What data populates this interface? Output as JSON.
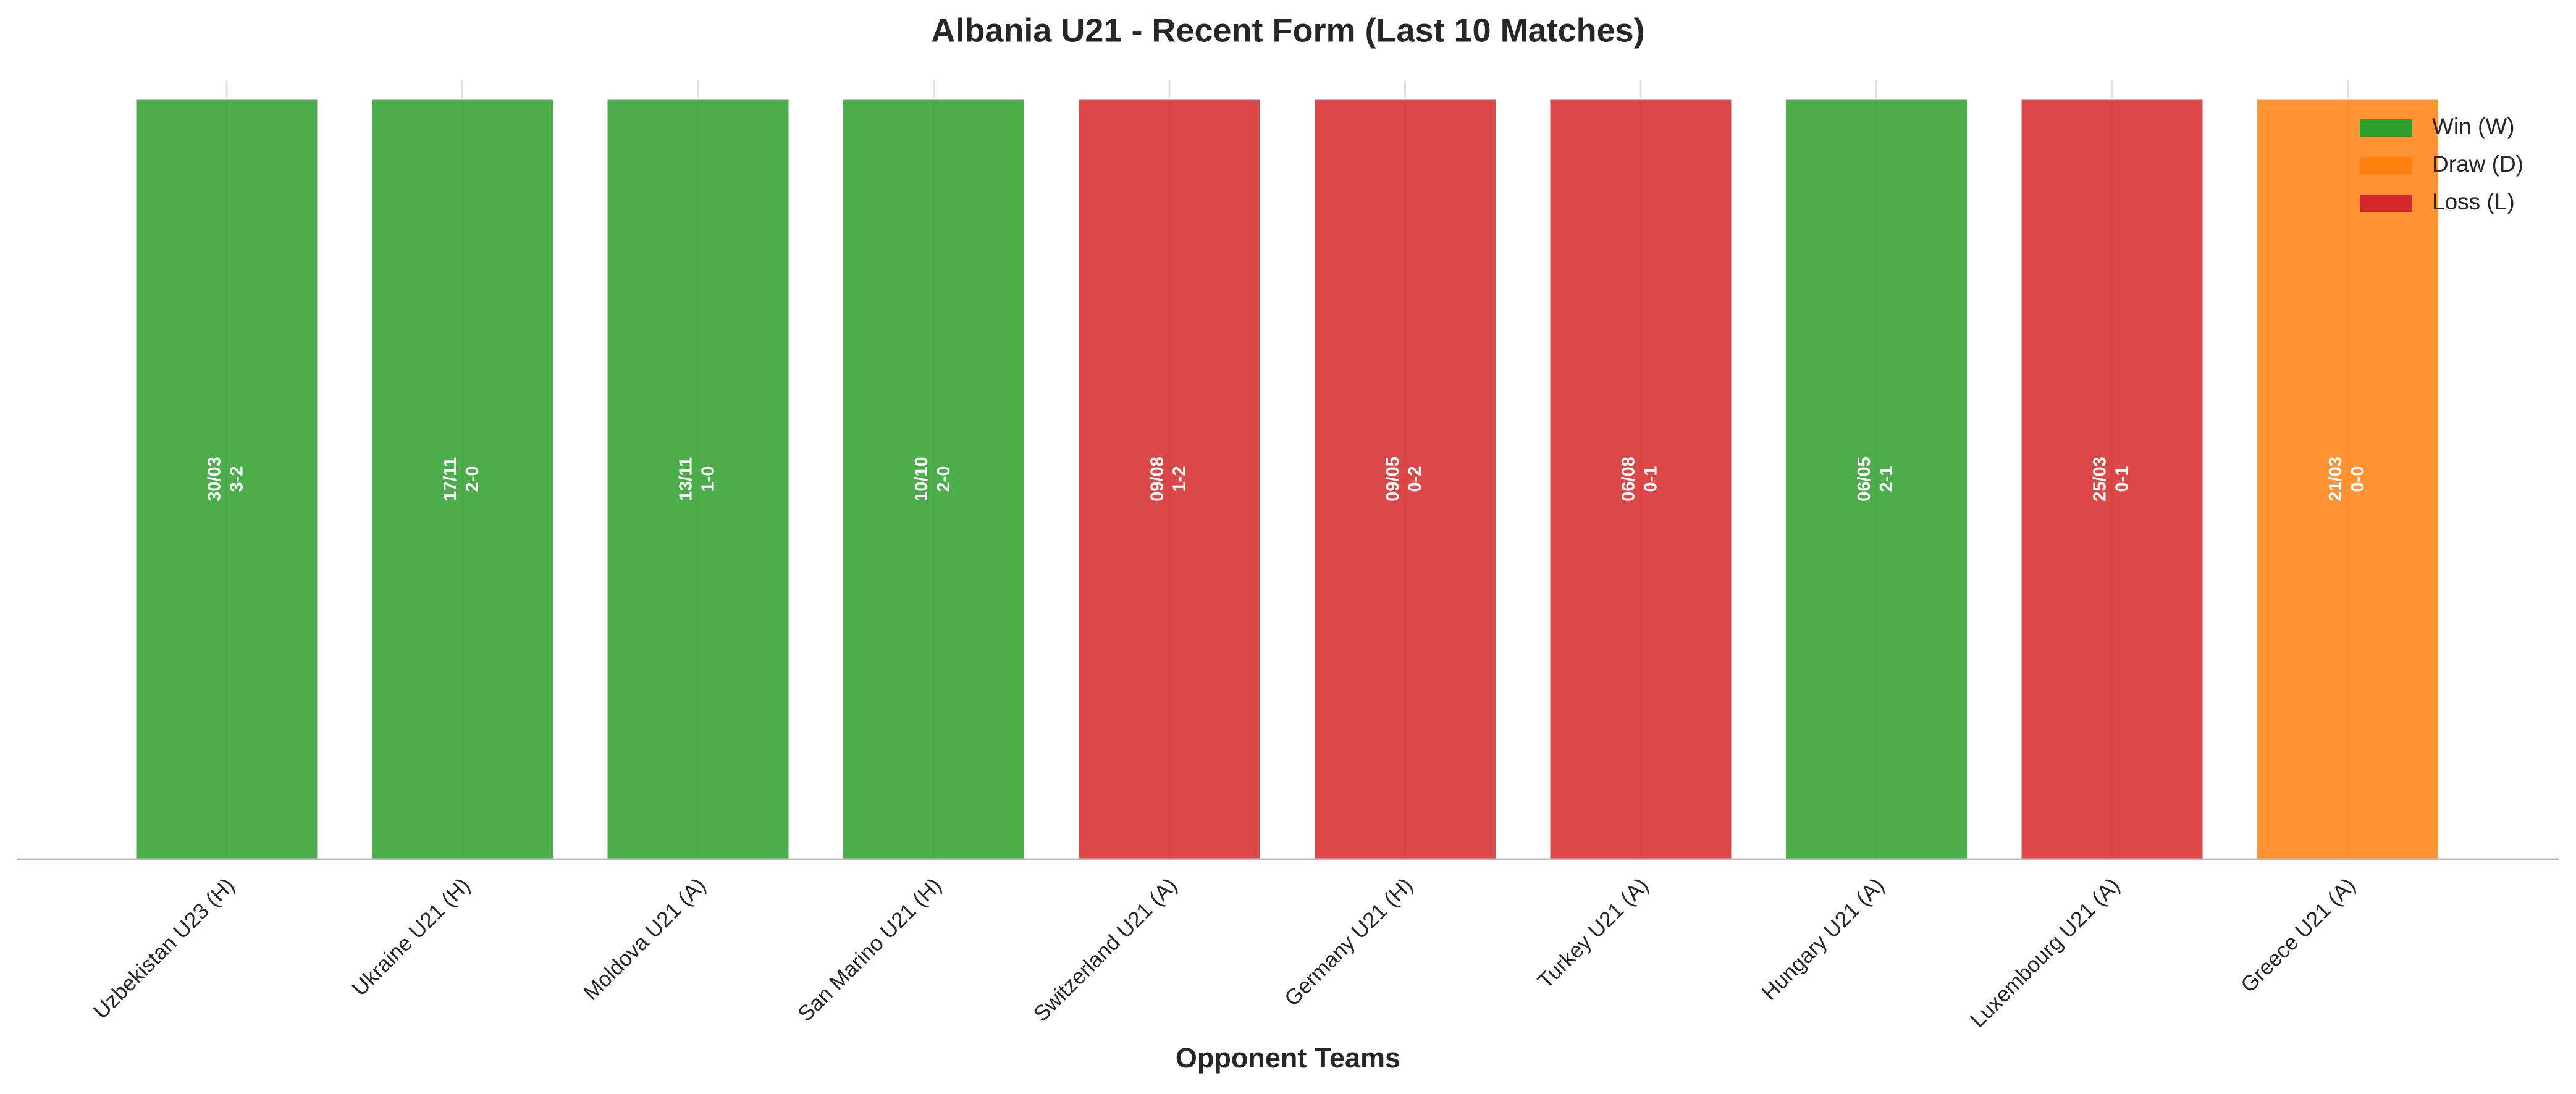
{
  "chart_data": {
    "type": "bar",
    "title": "Albania U21 - Recent Form (Last 10 Matches)",
    "x_label": "Opponent Teams",
    "categories": [
      "Uzbekistan U23 (H)",
      "Ukraine U21 (H)",
      "Moldova U21 (A)",
      "San Marino U21 (H)",
      "Switzerland U21 (A)",
      "Germany U21 (H)",
      "Turkey U21 (A)",
      "Hungary U21 (A)",
      "Luxembourg U21 (A)",
      "Greece U21 (A)"
    ],
    "dates": [
      "30/03",
      "17/11",
      "13/11",
      "10/10",
      "09/08",
      "09/05",
      "06/08",
      "06/05",
      "25/03",
      "21/03"
    ],
    "scores": [
      "3-2",
      "2-0",
      "1-0",
      "2-0",
      "1-2",
      "0-2",
      "0-1",
      "2-1",
      "0-1",
      "0-0"
    ],
    "series": [
      {
        "name": "Win (W)",
        "color": "#2ca02c",
        "values": [
          1,
          1,
          1,
          1,
          null,
          null,
          null,
          1,
          null,
          null
        ]
      },
      {
        "name": "Draw (D)",
        "color": "#ff7f0e",
        "values": [
          null,
          null,
          null,
          null,
          null,
          null,
          null,
          null,
          null,
          1
        ]
      },
      {
        "name": "Loss (L)",
        "color": "#d62728",
        "values": [
          null,
          null,
          null,
          null,
          1,
          1,
          1,
          null,
          1,
          null
        ]
      }
    ],
    "ylim": [
      0,
      1
    ],
    "grid": true,
    "legend": "upper right"
  }
}
